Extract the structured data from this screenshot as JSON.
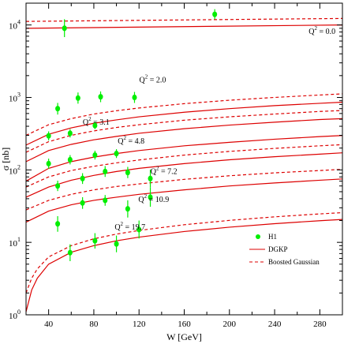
{
  "chart_data": {
    "type": "scatter",
    "title": "",
    "xlabel": "W [GeV]",
    "ylabel": "σ [nb]",
    "x_range": [
      20,
      300
    ],
    "y_range": [
      1,
      20000
    ],
    "y_scale": "log",
    "grid": false,
    "legend_position": "bottom-right",
    "x_ticks": [
      "40",
      "80",
      "120",
      "160",
      "200",
      "240",
      "280"
    ],
    "x_tick_values": [
      40,
      80,
      120,
      160,
      200,
      240,
      280
    ],
    "y_ticks": [
      {
        "base": "10",
        "exp": "0",
        "value": 1
      },
      {
        "base": "10",
        "exp": "1",
        "value": 10
      },
      {
        "base": "10",
        "exp": "2",
        "value": 100
      },
      {
        "base": "10",
        "exp": "3",
        "value": 1000
      },
      {
        "base": "10",
        "exp": "4",
        "value": 10000
      }
    ],
    "legend": [
      {
        "label": "H1",
        "kind": "marker"
      },
      {
        "label": "DGKP",
        "kind": "solid"
      },
      {
        "label": "Boosted Gaussian",
        "kind": "dashed"
      }
    ],
    "q2_labels": [
      {
        "text": "Q²= 0.0",
        "base": "Q",
        "exp": "2",
        "rest": " = 0.0",
        "at": [
          282,
          7500
        ]
      },
      {
        "text": "Q²= 2.0",
        "base": "Q",
        "exp": "2",
        "rest": " = 2.0",
        "at": [
          132,
          1600
        ]
      },
      {
        "text": "Q²= 3.1",
        "base": "Q",
        "exp": "2",
        "rest": " = 3.1",
        "at": [
          82,
          420
        ]
      },
      {
        "text": "Q²= 4.8",
        "base": "Q",
        "exp": "2",
        "rest": " = 4.8",
        "at": [
          113,
          230
        ]
      },
      {
        "text": "Q²= 7.2",
        "base": "Q",
        "exp": "2",
        "rest": " = 7.2",
        "at": [
          142,
          88
        ]
      },
      {
        "text": "Q²= 10.9",
        "base": "Q",
        "exp": "2",
        "rest": " = 10.9",
        "at": [
          133,
          36
        ]
      },
      {
        "text": "Q²= 19.7",
        "base": "Q",
        "exp": "2",
        "rest": " = 19.7",
        "at": [
          112,
          15
        ]
      }
    ],
    "curves": [
      {
        "q2": "0.0",
        "dgkp": [
          [
            20,
            9000
          ],
          [
            300,
            10000
          ]
        ],
        "bg": [
          [
            20,
            11200
          ],
          [
            300,
            12300
          ]
        ]
      },
      {
        "q2": "2.0",
        "dgkp": [
          [
            20,
            220
          ],
          [
            40,
            310
          ],
          [
            60,
            380
          ],
          [
            80,
            440
          ],
          [
            100,
            490
          ],
          [
            120,
            540
          ],
          [
            160,
            625
          ],
          [
            200,
            700
          ],
          [
            240,
            770
          ],
          [
            280,
            830
          ],
          [
            300,
            860
          ]
        ],
        "bg": [
          [
            20,
            300
          ],
          [
            40,
            420
          ],
          [
            60,
            510
          ],
          [
            80,
            590
          ],
          [
            100,
            655
          ],
          [
            120,
            715
          ],
          [
            160,
            820
          ],
          [
            200,
            915
          ],
          [
            240,
            1000
          ],
          [
            280,
            1080
          ],
          [
            300,
            1120
          ]
        ]
      },
      {
        "q2": "3.1",
        "dgkp": [
          [
            20,
            130
          ],
          [
            40,
            185
          ],
          [
            60,
            225
          ],
          [
            80,
            260
          ],
          [
            100,
            290
          ],
          [
            120,
            320
          ],
          [
            160,
            370
          ],
          [
            200,
            415
          ],
          [
            240,
            455
          ],
          [
            280,
            495
          ],
          [
            300,
            510
          ]
        ],
        "bg": [
          [
            20,
            175
          ],
          [
            40,
            245
          ],
          [
            60,
            300
          ],
          [
            80,
            345
          ],
          [
            100,
            385
          ],
          [
            120,
            420
          ],
          [
            160,
            485
          ],
          [
            200,
            540
          ],
          [
            240,
            590
          ],
          [
            280,
            640
          ],
          [
            300,
            660
          ]
        ]
      },
      {
        "q2": "4.8",
        "dgkp": [
          [
            20,
            70
          ],
          [
            40,
            105
          ],
          [
            60,
            130
          ],
          [
            80,
            150
          ],
          [
            100,
            168
          ],
          [
            120,
            185
          ],
          [
            160,
            215
          ],
          [
            200,
            240
          ],
          [
            240,
            265
          ],
          [
            280,
            288
          ],
          [
            300,
            298
          ]
        ]
      },
      {
        "q2": "7.2",
        "dgkp": [
          [
            20,
            42
          ],
          [
            40,
            58
          ],
          [
            60,
            72
          ],
          [
            80,
            84
          ],
          [
            100,
            95
          ],
          [
            120,
            105
          ],
          [
            160,
            122
          ],
          [
            200,
            138
          ],
          [
            240,
            152
          ],
          [
            280,
            165
          ],
          [
            300,
            172
          ]
        ],
        "bg": [
          [
            20,
            58
          ],
          [
            40,
            80
          ],
          [
            60,
            98
          ],
          [
            80,
            112
          ],
          [
            100,
            125
          ],
          [
            120,
            137
          ],
          [
            160,
            160
          ],
          [
            200,
            180
          ],
          [
            240,
            198
          ],
          [
            280,
            215
          ],
          [
            300,
            223
          ]
        ]
      },
      {
        "q2": "10.9",
        "dgkp": [
          [
            20,
            19
          ],
          [
            40,
            27
          ],
          [
            60,
            33
          ],
          [
            80,
            38
          ],
          [
            100,
            42
          ],
          [
            120,
            46
          ],
          [
            160,
            53
          ],
          [
            200,
            60
          ],
          [
            240,
            66
          ],
          [
            280,
            72
          ],
          [
            300,
            75
          ]
        ],
        "bg": [
          [
            20,
            28
          ],
          [
            40,
            38
          ],
          [
            60,
            46
          ],
          [
            80,
            53
          ],
          [
            100,
            59
          ],
          [
            120,
            64
          ],
          [
            160,
            74
          ],
          [
            200,
            83
          ],
          [
            240,
            91
          ],
          [
            280,
            98
          ],
          [
            300,
            102
          ]
        ]
      },
      {
        "q2": "19.7",
        "dgkp": [
          [
            20,
            1.1
          ],
          [
            25,
            2.2
          ],
          [
            30,
            3.2
          ],
          [
            40,
            5.0
          ],
          [
            60,
            7.3
          ],
          [
            80,
            9.0
          ],
          [
            100,
            10.5
          ],
          [
            120,
            11.8
          ],
          [
            160,
            14.1
          ],
          [
            200,
            16.2
          ],
          [
            240,
            18.1
          ],
          [
            280,
            19.9
          ],
          [
            300,
            20.7
          ]
        ],
        "bg": [
          [
            20,
            2.0
          ],
          [
            25,
            3.2
          ],
          [
            30,
            4.3
          ],
          [
            40,
            6.3
          ],
          [
            60,
            9.0
          ],
          [
            80,
            11.2
          ],
          [
            100,
            13.0
          ],
          [
            120,
            14.6
          ],
          [
            160,
            17.5
          ],
          [
            200,
            20.1
          ],
          [
            240,
            22.5
          ],
          [
            280,
            24.7
          ],
          [
            300,
            25.7
          ]
        ]
      }
    ],
    "points": [
      {
        "x": 54,
        "y": 9000,
        "lo": 6800,
        "hi": 12000
      },
      {
        "x": 187,
        "y": 14000,
        "lo": 12000,
        "hi": 16500
      },
      {
        "x": 48,
        "y": 700,
        "lo": 580,
        "hi": 840
      },
      {
        "x": 66,
        "y": 980,
        "lo": 820,
        "hi": 1170
      },
      {
        "x": 86,
        "y": 1020,
        "lo": 860,
        "hi": 1210
      },
      {
        "x": 116,
        "y": 1000,
        "lo": 840,
        "hi": 1190
      },
      {
        "x": 40,
        "y": 295,
        "lo": 255,
        "hi": 340
      },
      {
        "x": 59,
        "y": 320,
        "lo": 280,
        "hi": 365
      },
      {
        "x": 81,
        "y": 410,
        "lo": 365,
        "hi": 460
      },
      {
        "x": 40,
        "y": 122,
        "lo": 104,
        "hi": 143
      },
      {
        "x": 59,
        "y": 138,
        "lo": 119,
        "hi": 160
      },
      {
        "x": 81,
        "y": 160,
        "lo": 139,
        "hi": 184
      },
      {
        "x": 100,
        "y": 168,
        "lo": 146,
        "hi": 193
      },
      {
        "x": 48,
        "y": 60,
        "lo": 51,
        "hi": 71
      },
      {
        "x": 70,
        "y": 76,
        "lo": 64,
        "hi": 90
      },
      {
        "x": 90,
        "y": 95,
        "lo": 80,
        "hi": 113
      },
      {
        "x": 110,
        "y": 92,
        "lo": 77,
        "hi": 110
      },
      {
        "x": 130,
        "y": 76,
        "lo": 57,
        "hi": 101
      },
      {
        "x": 70,
        "y": 35,
        "lo": 29,
        "hi": 42
      },
      {
        "x": 90,
        "y": 38,
        "lo": 32,
        "hi": 45
      },
      {
        "x": 110,
        "y": 29,
        "lo": 22,
        "hi": 38
      },
      {
        "x": 130,
        "y": 42,
        "lo": 31,
        "hi": 57
      },
      {
        "x": 48,
        "y": 18,
        "lo": 14,
        "hi": 23
      },
      {
        "x": 59,
        "y": 7.2,
        "lo": 5.5,
        "hi": 9.4
      },
      {
        "x": 81,
        "y": 10.5,
        "lo": 8.2,
        "hi": 13.4
      },
      {
        "x": 100,
        "y": 9.5,
        "lo": 7.3,
        "hi": 12.4
      },
      {
        "x": 120,
        "y": 15,
        "lo": 11.3,
        "hi": 20
      }
    ],
    "colors": {
      "points": "#00ee00",
      "curves": "#dd0000",
      "axes": "#000000"
    }
  }
}
